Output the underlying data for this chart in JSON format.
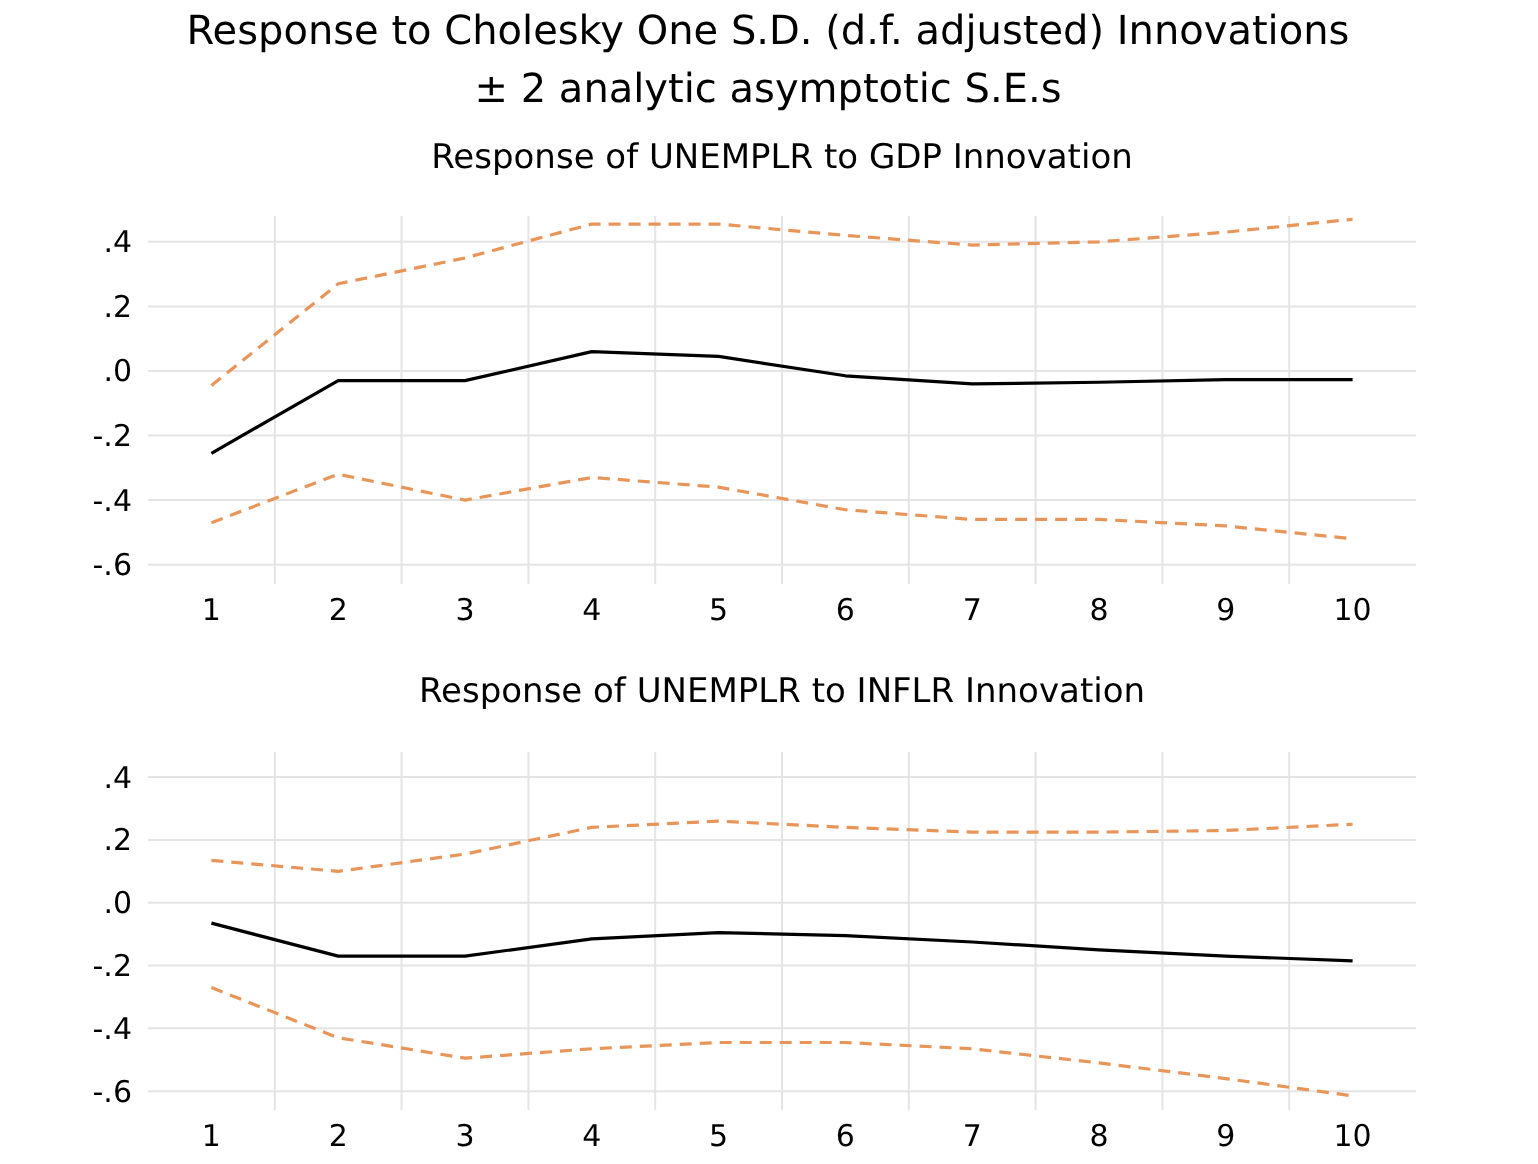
{
  "chart_data": [
    {
      "type": "line",
      "title": "Response of UNEMPLR to GDP Innovation",
      "annotations": [
        "Response to Cholesky One S.D. (d.f. adjusted) Innovations",
        "± 2 analytic asymptotic S.E.s"
      ],
      "categories": [
        "1",
        "2",
        "3",
        "4",
        "5",
        "6",
        "7",
        "8",
        "9",
        "10"
      ],
      "series": [
        {
          "color": "#000000",
          "line_style": "solid",
          "values": [
            -0.255,
            -0.03,
            -0.03,
            0.06,
            0.045,
            -0.015,
            -0.04,
            -0.035,
            -0.027,
            -0.027
          ]
        },
        {
          "color": "#e8955a",
          "line_style": "dashed",
          "values": [
            -0.045,
            0.27,
            0.35,
            0.455,
            0.455,
            0.42,
            0.39,
            0.4,
            0.43,
            0.47
          ]
        },
        {
          "color": "#e8955a",
          "line_style": "dashed",
          "values": [
            -0.47,
            -0.32,
            -0.4,
            -0.33,
            -0.36,
            -0.43,
            -0.46,
            -0.46,
            -0.48,
            -0.52
          ]
        }
      ],
      "ylim": [
        -0.66,
        0.48
      ],
      "yticks": [
        {
          "value": -0.6,
          "label": "-.6"
        },
        {
          "value": -0.4,
          "label": "-.4"
        },
        {
          "value": -0.2,
          "label": "-.2"
        },
        {
          "value": 0,
          "label": ".0"
        },
        {
          "value": 0.2,
          "label": ".2"
        },
        {
          "value": 0.4,
          "label": ".4"
        }
      ],
      "grid": true
    },
    {
      "type": "line",
      "title": "Response of UNEMPLR to INFLR Innovation",
      "categories": [
        "1",
        "2",
        "3",
        "4",
        "5",
        "6",
        "7",
        "8",
        "9",
        "10"
      ],
      "series": [
        {
          "color": "#000000",
          "line_style": "solid",
          "values": [
            -0.065,
            -0.17,
            -0.17,
            -0.115,
            -0.095,
            -0.105,
            -0.125,
            -0.15,
            -0.17,
            -0.185
          ]
        },
        {
          "color": "#e8955a",
          "line_style": "dashed",
          "values": [
            0.135,
            0.1,
            0.155,
            0.24,
            0.26,
            0.24,
            0.225,
            0.225,
            0.23,
            0.25
          ]
        },
        {
          "color": "#e8955a",
          "line_style": "dashed",
          "values": [
            -0.27,
            -0.43,
            -0.495,
            -0.465,
            -0.445,
            -0.445,
            -0.465,
            -0.51,
            -0.56,
            -0.615
          ]
        }
      ],
      "ylim": [
        -0.66,
        0.48
      ],
      "yticks": [
        {
          "value": -0.6,
          "label": "-.6"
        },
        {
          "value": -0.4,
          "label": "-.4"
        },
        {
          "value": -0.2,
          "label": "-.2"
        },
        {
          "value": 0,
          "label": ".0"
        },
        {
          "value": 0.2,
          "label": ".2"
        },
        {
          "value": 0.4,
          "label": ".4"
        }
      ],
      "grid": true
    }
  ]
}
